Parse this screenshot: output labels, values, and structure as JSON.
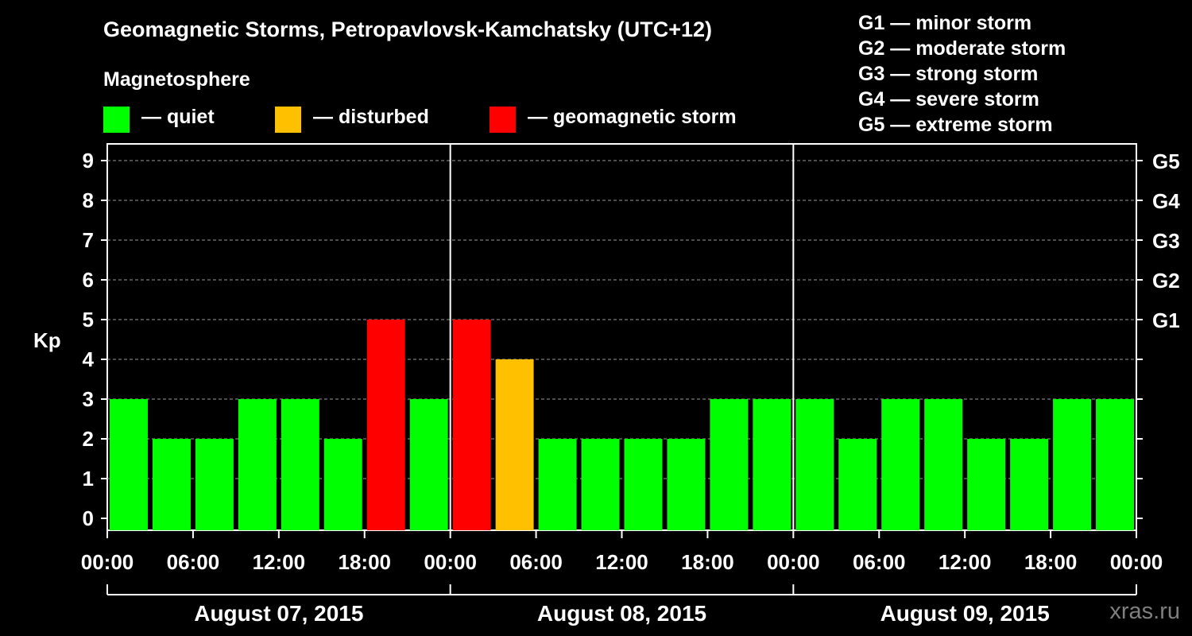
{
  "chart_data": {
    "type": "bar",
    "title": "Geomagnetic Storms, Petropavlovsk-Kamchatsky (UTC+12)",
    "ylabel": "Kp",
    "ylim": [
      0,
      9
    ],
    "yticks": [
      "0",
      "1",
      "2",
      "3",
      "4",
      "5",
      "6",
      "7",
      "8",
      "9"
    ],
    "right_axis_labels": [
      {
        "kp": 5,
        "label": "G1"
      },
      {
        "kp": 6,
        "label": "G2"
      },
      {
        "kp": 7,
        "label": "G3"
      },
      {
        "kp": 8,
        "label": "G4"
      },
      {
        "kp": 9,
        "label": "G5"
      }
    ],
    "time_ticks": [
      "00:00",
      "06:00",
      "12:00",
      "18:00",
      "00:00",
      "06:00",
      "12:00",
      "18:00",
      "00:00",
      "06:00",
      "12:00",
      "18:00",
      "00:00"
    ],
    "days": [
      "August 07, 2015",
      "August 08, 2015",
      "August 09, 2015"
    ],
    "interval_hours": 3,
    "values": [
      3,
      2,
      2,
      3,
      3,
      2,
      5,
      3,
      5,
      4,
      2,
      2,
      2,
      2,
      3,
      3,
      3,
      2,
      3,
      3,
      2,
      2,
      3,
      3
    ],
    "grid": true,
    "legend_heading": "Magnetosphere",
    "legend": [
      {
        "label": "— quiet",
        "color": "#00ff00"
      },
      {
        "label": "— disturbed",
        "color": "#ffc000"
      },
      {
        "label": "— geomagnetic storm",
        "color": "#ff0000"
      }
    ],
    "storm_scale": [
      "G1 — minor storm",
      "G2 — moderate storm",
      "G3 — strong storm",
      "G4 — severe storm",
      "G5 — extreme storm"
    ]
  },
  "colors": {
    "quiet": "#00ff00",
    "disturbed": "#ffc000",
    "storm": "#ff0000",
    "axis": "#ffffff",
    "grid": "#9a9a9a"
  },
  "watermark": "xras.ru"
}
